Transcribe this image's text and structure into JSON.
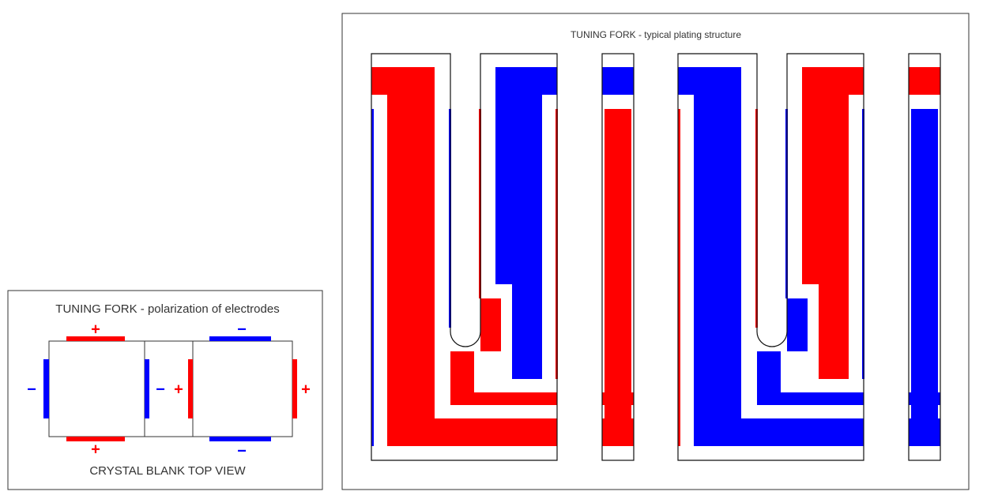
{
  "left_panel": {
    "title": "TUNING FORK - polarization of electrodes",
    "caption": "CRYSTAL BLANK TOP VIEW",
    "signs": [
      "+",
      "+",
      "−",
      "−",
      "+",
      "−",
      "−",
      "+"
    ]
  },
  "right_panel": {
    "title": "TUNING FORK - typical plating structure"
  }
}
